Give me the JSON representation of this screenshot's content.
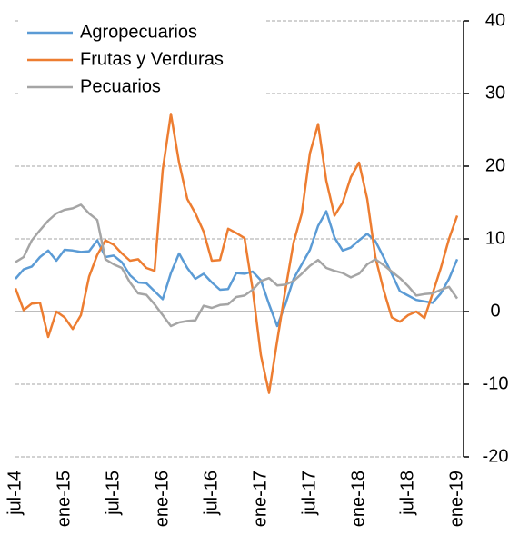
{
  "chart_data": {
    "type": "line",
    "categories": [
      "jul-14",
      null,
      null,
      null,
      null,
      null,
      "ene-15",
      null,
      null,
      null,
      null,
      null,
      "jul-15",
      null,
      null,
      null,
      null,
      null,
      "ene-16",
      null,
      null,
      null,
      null,
      null,
      "jul-16",
      null,
      null,
      null,
      null,
      null,
      "ene-17",
      null,
      null,
      null,
      null,
      null,
      "jul-17",
      null,
      null,
      null,
      null,
      null,
      "ene-18",
      null,
      null,
      null,
      null,
      null,
      "jul-18",
      null,
      null,
      null,
      null,
      null,
      "ene-19"
    ],
    "series": [
      {
        "name": "Agropecuarios",
        "color": "#5b9bd5",
        "values": [
          4.5,
          5.8,
          6.2,
          7.5,
          8.4,
          7.0,
          8.5,
          8.4,
          8.2,
          8.3,
          9.8,
          7.5,
          7.7,
          6.8,
          5.0,
          4.0,
          3.9,
          2.8,
          1.7,
          5.3,
          8.0,
          6.0,
          4.5,
          5.2,
          4.0,
          3.0,
          3.1,
          5.3,
          5.2,
          5.5,
          4.3,
          1.0,
          -2.0,
          1.0,
          4.5,
          6.5,
          8.5,
          11.8,
          13.8,
          10.2,
          8.4,
          8.8,
          9.8,
          10.7,
          9.7,
          7.5,
          5.2,
          2.8,
          2.2,
          1.6,
          1.4,
          1.2,
          2.5,
          4.5,
          7.2
        ]
      },
      {
        "name": "Frutas y Verduras",
        "color": "#ed7d31",
        "values": [
          3.2,
          0.2,
          1.1,
          1.2,
          -3.5,
          0,
          -0.8,
          -2.4,
          -0.5,
          4.8,
          7.8,
          9.8,
          9.2,
          8.0,
          7.0,
          7.2,
          6.0,
          5.6,
          19.5,
          27.2,
          20.5,
          15.5,
          13.5,
          11.0,
          7.0,
          7.1,
          11.4,
          10.8,
          10.1,
          3.0,
          -6.0,
          -11.2,
          -4.0,
          3.0,
          9.5,
          13.5,
          21.8,
          25.8,
          18.0,
          13.2,
          15.0,
          18.5,
          20.5,
          15.5,
          7.5,
          3.0,
          -0.8,
          -1.4,
          -0.5,
          0,
          -0.9,
          2.5,
          6.0,
          10.0,
          13.2
        ]
      },
      {
        "name": "Pecuarios",
        "color": "#a5a5a5",
        "values": [
          6.8,
          7.5,
          9.8,
          11.2,
          12.5,
          13.5,
          14.0,
          14.2,
          14.7,
          13.5,
          12.6,
          7.2,
          6.5,
          6.0,
          4.0,
          2.5,
          2.3,
          1.0,
          -0.5,
          -2.0,
          -1.5,
          -1.3,
          -1.2,
          0.8,
          0.5,
          0.9,
          1.0,
          2.0,
          2.2,
          3.0,
          4.2,
          4.6,
          3.6,
          3.7,
          4.2,
          5.2,
          6.3,
          7.1,
          6.0,
          5.6,
          5.3,
          4.7,
          5.2,
          6.5,
          7.2,
          6.4,
          5.5,
          4.6,
          3.5,
          2.2,
          2.4,
          2.5,
          3.0,
          3.4,
          1.8
        ]
      }
    ],
    "ylim": [
      -20,
      40
    ],
    "yticks": [
      -20,
      -10,
      0,
      10,
      20,
      30,
      40
    ],
    "y_axis_side": "right",
    "grid": true,
    "legend": "upper left"
  }
}
